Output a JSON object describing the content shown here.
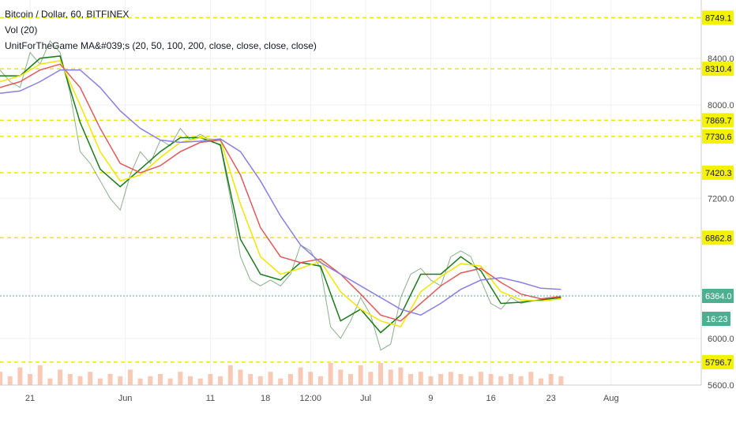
{
  "legend": {
    "symbol": "Bitcoin / Dollar, 60, BITFINEX",
    "volume": "Vol (20)",
    "ma": "UnitForTheGame MA&#039;s (20, 50, 100, 200, close, close, close, close)"
  },
  "colors": {
    "hline": "#f2e600",
    "tag_bg": "#f5f200",
    "current_bg": "#4caf8f",
    "ma20": "#1b7a1b",
    "ma50": "#f2e600",
    "ma100": "#e05a5a",
    "ma200": "#8a7fe0",
    "volume": "#f4a582",
    "grid": "#eef0f3"
  },
  "chart_data": {
    "type": "line",
    "x_ticks": [
      "21",
      "Jun",
      "11",
      "18",
      "12:00",
      "Jul",
      "9",
      "16",
      "23",
      "Aug"
    ],
    "y_ticks": [
      "8400.0",
      "8000.0",
      "7200.0",
      "6000.0",
      "5600.0"
    ],
    "ylim": [
      5600,
      8900
    ],
    "xlim": [
      0,
      70
    ],
    "levels": [
      "8749.1",
      "8310.4",
      "7869.7",
      "7730.6",
      "7420.3",
      "6862.8",
      "5796.7"
    ],
    "current_price": "6364.0",
    "countdown": "16:23",
    "series": [
      {
        "key": "price",
        "x": [
          0,
          1,
          2,
          3,
          4,
          5,
          6,
          7,
          8,
          9,
          10,
          11,
          12,
          13,
          14,
          15,
          16,
          17,
          18,
          19,
          20,
          21,
          22,
          23,
          24,
          25,
          26,
          27,
          28,
          29,
          30,
          31,
          32,
          33,
          34,
          35,
          36,
          37,
          38,
          39,
          40,
          41,
          42,
          43,
          44,
          45,
          46,
          47,
          48,
          49,
          50,
          51,
          52,
          53,
          54,
          55,
          56
        ],
        "values": [
          8300,
          8200,
          8150,
          8450,
          8350,
          8550,
          8450,
          8100,
          7600,
          7500,
          7350,
          7200,
          7100,
          7400,
          7600,
          7500,
          7700,
          7650,
          7800,
          7700,
          7750,
          7700,
          7650,
          7200,
          6700,
          6500,
          6450,
          6500,
          6450,
          6550,
          6800,
          6750,
          6600,
          6100,
          6000,
          6150,
          6350,
          6200,
          5900,
          5950,
          6350,
          6550,
          6600,
          6500,
          6450,
          6700,
          6750,
          6700,
          6500,
          6300,
          6250,
          6350,
          6300,
          6320,
          6330,
          6340,
          6364
        ]
      },
      {
        "key": "ma20",
        "x": [
          0,
          2,
          4,
          6,
          8,
          10,
          12,
          14,
          16,
          18,
          20,
          22,
          24,
          26,
          28,
          30,
          32,
          34,
          36,
          38,
          40,
          42,
          44,
          46,
          48,
          50,
          52,
          54,
          56
        ],
        "values": [
          8250,
          8250,
          8400,
          8420,
          7850,
          7450,
          7300,
          7450,
          7600,
          7720,
          7720,
          7660,
          6850,
          6550,
          6500,
          6650,
          6620,
          6150,
          6250,
          6050,
          6200,
          6550,
          6550,
          6700,
          6580,
          6300,
          6310,
          6330,
          6350
        ]
      },
      {
        "key": "ma50",
        "x": [
          0,
          2,
          4,
          6,
          8,
          10,
          12,
          14,
          16,
          18,
          20,
          22,
          24,
          26,
          28,
          30,
          32,
          34,
          36,
          38,
          40,
          42,
          44,
          46,
          48,
          50,
          52,
          54,
          56
        ],
        "values": [
          8200,
          8250,
          8350,
          8380,
          8000,
          7600,
          7350,
          7400,
          7550,
          7680,
          7720,
          7700,
          7150,
          6700,
          6550,
          6600,
          6660,
          6400,
          6250,
          6150,
          6100,
          6400,
          6530,
          6640,
          6620,
          6400,
          6330,
          6320,
          6340
        ]
      },
      {
        "key": "ma100",
        "x": [
          0,
          2,
          4,
          6,
          8,
          10,
          12,
          14,
          16,
          18,
          20,
          22,
          24,
          26,
          28,
          30,
          32,
          34,
          36,
          38,
          40,
          42,
          44,
          46,
          48,
          50,
          52,
          54,
          56
        ],
        "values": [
          8150,
          8200,
          8300,
          8350,
          8150,
          7800,
          7500,
          7420,
          7480,
          7600,
          7680,
          7700,
          7400,
          6950,
          6700,
          6650,
          6680,
          6550,
          6380,
          6200,
          6150,
          6300,
          6450,
          6560,
          6600,
          6480,
          6380,
          6340,
          6360
        ]
      },
      {
        "key": "ma200",
        "x": [
          0,
          2,
          4,
          6,
          8,
          10,
          12,
          14,
          16,
          18,
          20,
          22,
          24,
          26,
          28,
          30,
          32,
          34,
          36,
          38,
          40,
          42,
          44,
          46,
          48,
          50,
          52,
          54,
          56
        ],
        "values": [
          8100,
          8120,
          8200,
          8300,
          8300,
          8150,
          7950,
          7800,
          7700,
          7680,
          7690,
          7710,
          7600,
          7350,
          7050,
          6800,
          6650,
          6550,
          6450,
          6350,
          6250,
          6200,
          6300,
          6420,
          6500,
          6520,
          6480,
          6430,
          6420
        ]
      }
    ],
    "volume": [
      0.6,
      0.4,
      0.8,
      0.5,
      0.9,
      0.3,
      0.7,
      0.5,
      0.4,
      0.6,
      0.3,
      0.5,
      0.4,
      0.7,
      0.3,
      0.4,
      0.5,
      0.3,
      0.6,
      0.4,
      0.3,
      0.5,
      0.4,
      0.9,
      0.7,
      0.5,
      0.4,
      0.6,
      0.3,
      0.5,
      0.8,
      0.6,
      0.4,
      1.0,
      0.7,
      0.5,
      0.9,
      0.6,
      1.0,
      0.7,
      0.8,
      0.5,
      0.6,
      0.4,
      0.5,
      0.6,
      0.5,
      0.4,
      0.6,
      0.5,
      0.4,
      0.5,
      0.4,
      0.6,
      0.3,
      0.5,
      0.4
    ]
  }
}
